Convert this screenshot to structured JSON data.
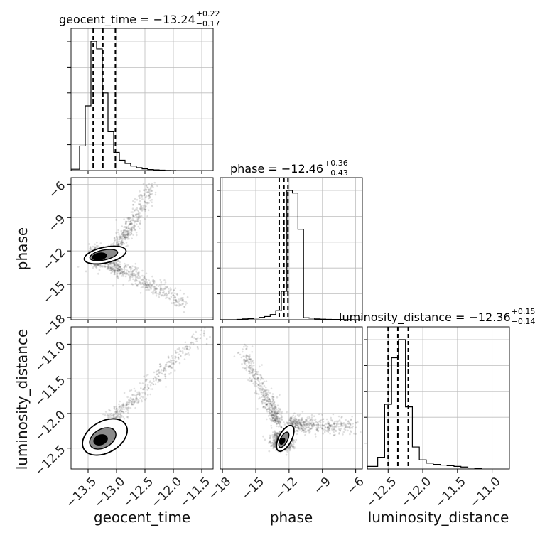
{
  "chart_data": {
    "type": "corner",
    "parameters": [
      "geocent_time",
      "phase",
      "luminosity_distance"
    ],
    "axis_labels": {
      "x": [
        "geocent_time",
        "phase",
        "luminosity_distance"
      ],
      "y": [
        "phase",
        "luminosity_distance"
      ]
    },
    "ranges": {
      "geocent_time": [
        -13.8,
        -11.3
      ],
      "phase": [
        -18.2,
        -5.4
      ],
      "luminosity_distance": [
        -12.8,
        -10.75
      ]
    },
    "ticks": {
      "geocent_time": [
        -13.5,
        -13.0,
        -12.5,
        -12.0,
        -11.5
      ],
      "phase": [
        -18,
        -15,
        -12,
        -9,
        -6
      ],
      "luminosity_distance": [
        -12.5,
        -12.0,
        -11.5,
        -11.0
      ]
    },
    "tick_labels": {
      "geocent_time": [
        "−13.5",
        "−13.0",
        "−12.5",
        "−12.0",
        "−11.5"
      ],
      "phase": [
        "−18",
        "−15",
        "−12",
        "−9",
        "−6"
      ],
      "luminosity_distance": [
        "−12.5",
        "−12.0",
        "−11.5",
        "−11.0"
      ]
    },
    "titles": [
      {
        "param": "geocent_time",
        "text": "geocent_time = −13.24",
        "sup": "+0.22",
        "sub": "−0.17"
      },
      {
        "param": "phase",
        "text": "phase = −12.46",
        "sup": "+0.36",
        "sub": "−0.43"
      },
      {
        "param": "luminosity_distance",
        "text": "luminosity_distance = −12.36",
        "sup": "+0.15",
        "sub": "−0.14"
      }
    ],
    "quantiles": {
      "geocent_time": [
        -13.41,
        -13.24,
        -13.02
      ],
      "phase": [
        -12.89,
        -12.46,
        -12.1
      ],
      "luminosity_distance": [
        -12.5,
        -12.36,
        -12.21
      ]
    },
    "histograms": {
      "geocent_time": {
        "edges": [
          -13.8,
          -13.65,
          -13.55,
          -13.45,
          -13.35,
          -13.25,
          -13.15,
          -13.05,
          -12.95,
          -12.85,
          -12.75,
          -12.65,
          -12.55,
          -12.45,
          -12.35,
          -12.25,
          -12.15,
          -12.05,
          -11.95
        ],
        "counts": [
          0.01,
          0.19,
          0.5,
          1.0,
          0.94,
          0.6,
          0.3,
          0.14,
          0.08,
          0.055,
          0.035,
          0.022,
          0.013,
          0.008,
          0.005,
          0.003,
          0.001,
          0.0
        ]
      },
      "phase": {
        "edges": [
          -18.2,
          -17.7,
          -17.2,
          -16.7,
          -16.2,
          -15.7,
          -15.2,
          -14.7,
          -14.2,
          -13.7,
          -13.2,
          -12.7,
          -12.2,
          -11.7,
          -11.2,
          -10.7,
          -10.2,
          -9.7,
          -9.2,
          -8.7,
          -8.2,
          -7.7,
          -7.2,
          -6.7,
          -6.2,
          -5.7
        ],
        "counts": [
          0,
          0,
          0,
          0.003,
          0.006,
          0.009,
          0.013,
          0.018,
          0.025,
          0.04,
          0.07,
          0.22,
          1.0,
          0.98,
          0.7,
          0.015,
          0.012,
          0.006,
          0.004,
          0.003,
          0.002,
          0.002,
          0.001,
          0.001,
          0
        ]
      },
      "luminosity_distance": {
        "edges": [
          -12.8,
          -12.65,
          -12.55,
          -12.45,
          -12.35,
          -12.25,
          -12.15,
          -12.05,
          -11.95,
          -11.85,
          -11.75,
          -11.65,
          -11.55,
          -11.45,
          -11.35,
          -11.25,
          -11.15
        ],
        "counts": [
          0.02,
          0.09,
          0.5,
          0.86,
          1.0,
          0.48,
          0.17,
          0.07,
          0.045,
          0.035,
          0.03,
          0.025,
          0.02,
          0.015,
          0.008,
          0.003
        ]
      }
    },
    "scatter_2d": [
      {
        "x": "geocent_time",
        "y": "phase",
        "core": [
          -13.3,
          -12.5
        ],
        "branches": [
          {
            "from": [
              -13.05,
              -12.3
            ],
            "to": [
              -12.35,
              -6.0
            ]
          },
          {
            "from": [
              -13.1,
              -13.2
            ],
            "to": [
              -11.8,
              -16.6
            ]
          }
        ]
      },
      {
        "x": "geocent_time",
        "y": "luminosity_distance",
        "core": [
          -13.28,
          -12.38
        ],
        "branches": [
          {
            "from": [
              -13.15,
              -12.15
            ],
            "to": [
              -11.5,
              -10.85
            ]
          }
        ]
      },
      {
        "x": "phase",
        "y": "luminosity_distance",
        "core": [
          -12.6,
          -12.4
        ],
        "branches": [
          {
            "from": [
              -13.0,
              -12.1
            ],
            "to": [
              -16.2,
              -11.1
            ]
          },
          {
            "from": [
              -11.8,
              -12.15
            ],
            "to": [
              -6.0,
              -12.2
            ]
          }
        ]
      }
    ],
    "grid": true,
    "legend": "none"
  }
}
